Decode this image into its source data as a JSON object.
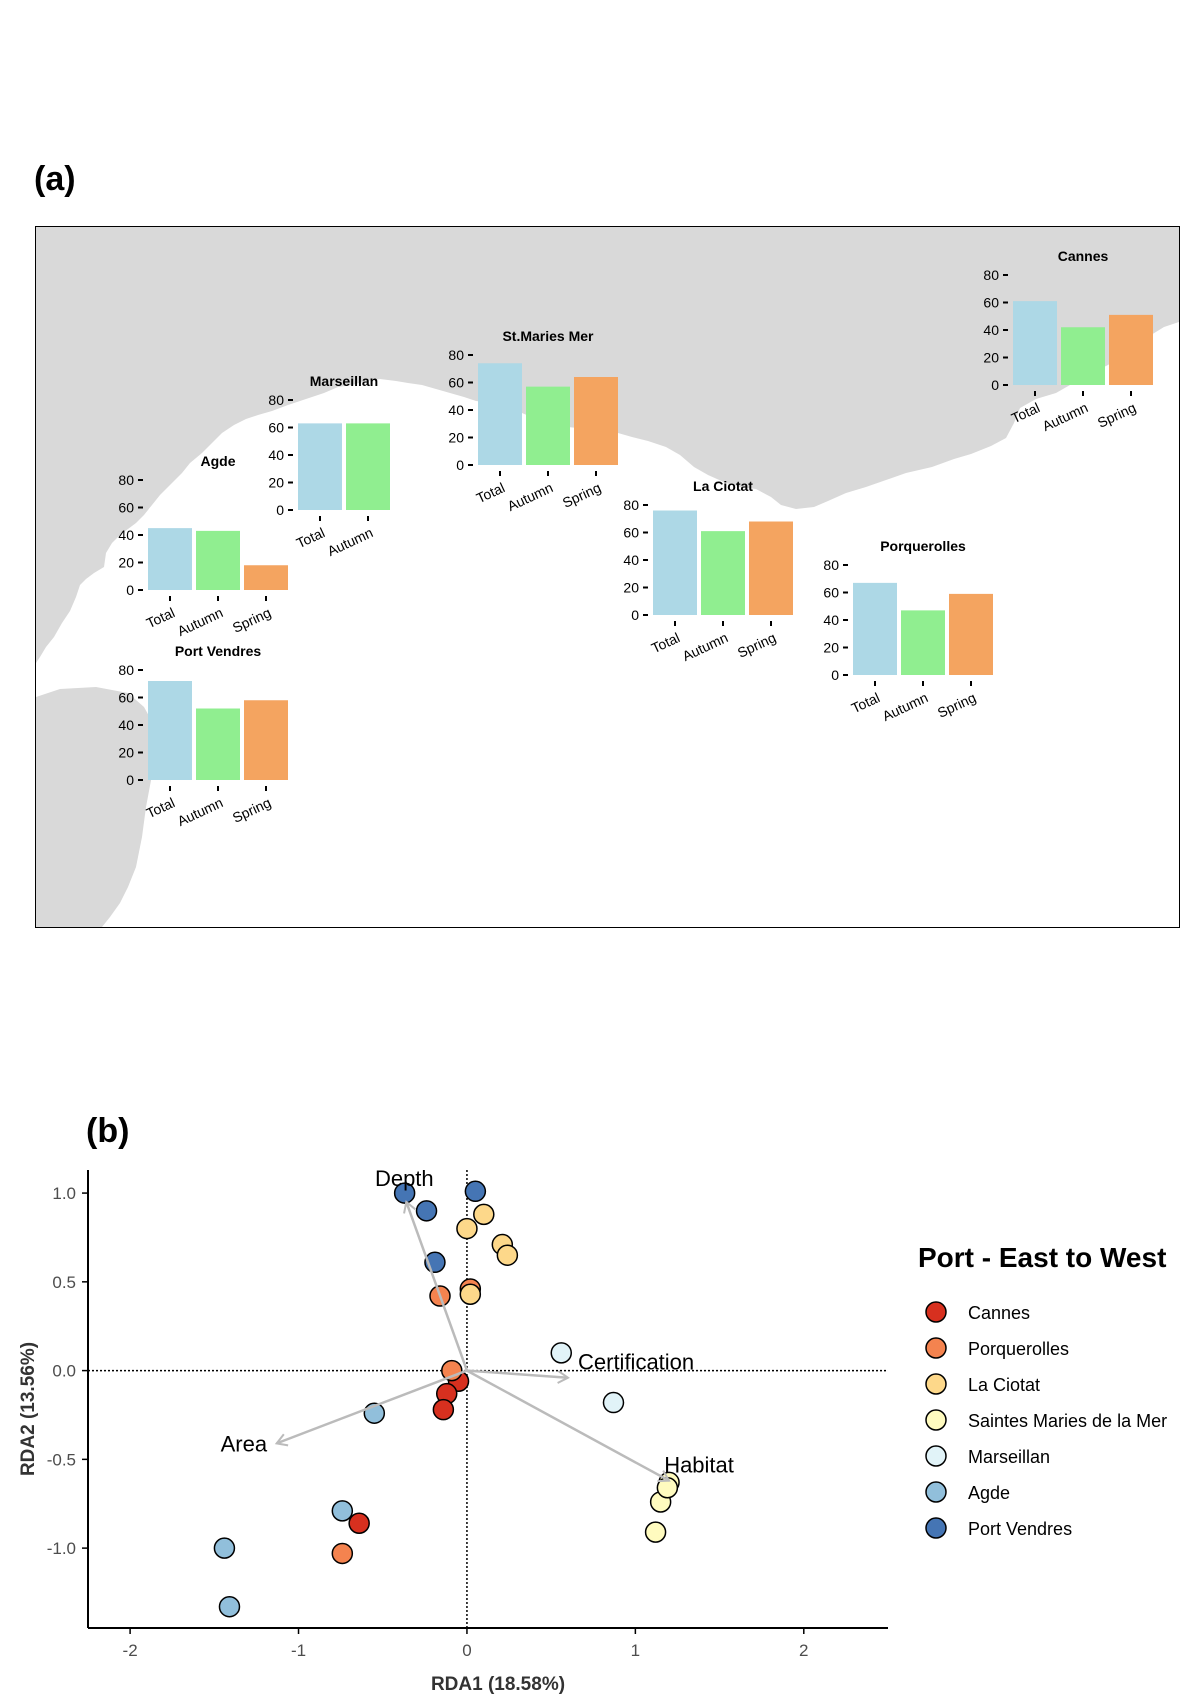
{
  "panel_a_label": "(a)",
  "panel_b_label": "(b)",
  "colors": {
    "land": "#d9d9d9",
    "Total": "#add8e6",
    "Autumn": "#90ee90",
    "Spring": "#f4a460",
    "arrow": "#bbbbbb"
  },
  "chart_data": [
    {
      "type": "bar",
      "title": "Agde",
      "categories": [
        "Total",
        "Autumn",
        "Spring"
      ],
      "values": [
        45,
        43,
        18
      ],
      "yticks": [
        0,
        20,
        40,
        60,
        80
      ],
      "ylim": [
        0,
        80
      ]
    },
    {
      "type": "bar",
      "title": "Marseillan",
      "categories": [
        "Total",
        "Autumn"
      ],
      "values": [
        63,
        63
      ],
      "yticks": [
        0,
        20,
        40,
        60,
        80
      ],
      "ylim": [
        0,
        80
      ]
    },
    {
      "type": "bar",
      "title": "St.Maries Mer",
      "categories": [
        "Total",
        "Autumn",
        "Spring"
      ],
      "values": [
        74,
        57,
        64
      ],
      "yticks": [
        0,
        20,
        40,
        60,
        80
      ],
      "ylim": [
        0,
        80
      ]
    },
    {
      "type": "bar",
      "title": "La Ciotat",
      "categories": [
        "Total",
        "Autumn",
        "Spring"
      ],
      "values": [
        76,
        61,
        68
      ],
      "yticks": [
        0,
        20,
        40,
        60,
        80
      ],
      "ylim": [
        0,
        80
      ]
    },
    {
      "type": "bar",
      "title": "Porquerolles",
      "categories": [
        "Total",
        "Autumn",
        "Spring"
      ],
      "values": [
        67,
        47,
        59
      ],
      "yticks": [
        0,
        20,
        40,
        60,
        80
      ],
      "ylim": [
        0,
        80
      ]
    },
    {
      "type": "bar",
      "title": "Cannes",
      "categories": [
        "Total",
        "Autumn",
        "Spring"
      ],
      "values": [
        61,
        42,
        51
      ],
      "yticks": [
        0,
        20,
        40,
        60,
        80
      ],
      "ylim": [
        0,
        80
      ]
    },
    {
      "type": "bar",
      "title": "Port Vendres",
      "categories": [
        "Total",
        "Autumn",
        "Spring"
      ],
      "values": [
        72,
        52,
        58
      ],
      "yticks": [
        0,
        20,
        40,
        60,
        80
      ],
      "ylim": [
        0,
        80
      ]
    },
    {
      "type": "scatter",
      "xlabel": "RDA1 (18.58%)",
      "ylabel": "RDA2 (13.56%)",
      "xlim": [
        -2.25,
        2.5
      ],
      "ylim": [
        -1.45,
        1.13
      ],
      "xticks": [
        -2,
        -1,
        0,
        1,
        2
      ],
      "yticks": [
        -1.0,
        -0.5,
        0.0,
        0.5,
        1.0
      ],
      "ytick_labels": [
        "-1.0",
        "-0.5",
        "0.0",
        "0.5",
        "1.0"
      ],
      "legend_title": "Port - East to West",
      "legend_position": "right",
      "series": [
        {
          "name": "Cannes",
          "color": "#d7301f",
          "points": [
            [
              -0.05,
              -0.06
            ],
            [
              -0.12,
              -0.13
            ],
            [
              -0.14,
              -0.22
            ],
            [
              -0.64,
              -0.86
            ]
          ]
        },
        {
          "name": "Porquerolles",
          "color": "#f4834f",
          "points": [
            [
              -0.09,
              0.0
            ],
            [
              0.02,
              0.46
            ],
            [
              -0.16,
              0.42
            ],
            [
              -0.74,
              -1.03
            ]
          ]
        },
        {
          "name": "La Ciotat",
          "color": "#fdd88a",
          "points": [
            [
              0.0,
              0.8
            ],
            [
              0.1,
              0.88
            ],
            [
              0.21,
              0.71
            ],
            [
              0.24,
              0.65
            ],
            [
              0.02,
              0.43
            ]
          ]
        },
        {
          "name": "Saintes Maries de la Mer",
          "color": "#fffbbf",
          "points": [
            [
              1.2,
              -0.63
            ],
            [
              1.15,
              -0.74
            ],
            [
              1.12,
              -0.91
            ],
            [
              1.19,
              -0.66
            ]
          ]
        },
        {
          "name": "Marseillan",
          "color": "#e1f3f8",
          "points": [
            [
              0.56,
              0.1
            ],
            [
              0.87,
              -0.18
            ]
          ]
        },
        {
          "name": "Agde",
          "color": "#91bfdb",
          "points": [
            [
              -0.55,
              -0.24
            ],
            [
              -0.74,
              -0.79
            ],
            [
              -1.44,
              -1.0
            ],
            [
              -1.41,
              -1.33
            ]
          ]
        },
        {
          "name": "Port Vendres",
          "color": "#4575b4",
          "points": [
            [
              -0.37,
              1.0
            ],
            [
              -0.24,
              0.9
            ],
            [
              0.05,
              1.01
            ],
            [
              -0.19,
              0.61
            ]
          ]
        }
      ],
      "vectors": [
        {
          "name": "Depth",
          "x": -0.36,
          "y": 0.95
        },
        {
          "name": "Certification",
          "x": 0.6,
          "y": -0.04
        },
        {
          "name": "Habitat",
          "x": 1.2,
          "y": -0.62
        },
        {
          "name": "Area",
          "x": -1.13,
          "y": -0.41
        }
      ]
    }
  ]
}
